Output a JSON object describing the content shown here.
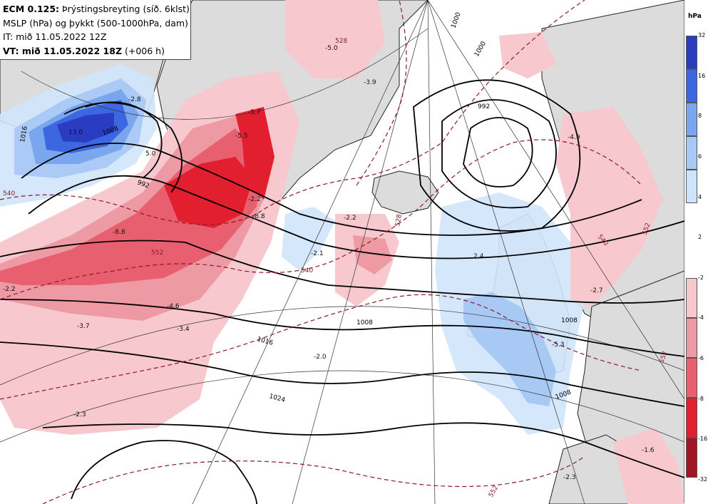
{
  "title": {
    "line1_bold": "ECM 0.125:",
    "line1_rest": " Þrýstingsbreyting (síð. 6klst)",
    "line2": "MSLP (hPa) og þykkt (500-1000hPa, dam)",
    "line3": "IT: mið 11.05.2022 12Z",
    "line4_bold": "VT: mið 11.05.2022 18Z",
    "line4_rest": " (+006 h)"
  },
  "legend": {
    "unit": "hPa",
    "positive": [
      {
        "tick": "32",
        "color": "#2a3cc2"
      },
      {
        "tick": "16",
        "color": "#3d67e0"
      },
      {
        "tick": "8",
        "color": "#7aa6ee"
      },
      {
        "tick": "6",
        "color": "#a9c9f5"
      },
      {
        "tick": "4",
        "color": "#cfe4fb"
      },
      {
        "tick": "2",
        "color": ""
      }
    ],
    "negative": [
      {
        "tick": "-2",
        "color": "#f7c9cf"
      },
      {
        "tick": "-4",
        "color": "#ee9aa5"
      },
      {
        "tick": "-6",
        "color": "#e8606f"
      },
      {
        "tick": "-8",
        "color": "#e11f2e"
      },
      {
        "tick": "-16",
        "color": "#a31524"
      },
      {
        "tick": "-32",
        "color": ""
      }
    ]
  },
  "isobar_labels": [
    "1016",
    "1008",
    "992",
    "1000",
    "1000",
    "1008",
    "1016",
    "1024",
    "1008",
    "992",
    "1008"
  ],
  "thickness_labels": [
    "540",
    "552",
    "528",
    "540",
    "552",
    "540",
    "552",
    "552",
    "528"
  ],
  "change_labels": [
    "-5.0",
    "-3.9",
    "-5.7",
    "-5.5",
    "-8.8",
    "-2.2",
    "-4.6",
    "-3.4",
    "-3.7",
    "-2.3",
    "-2.0",
    "-1.6",
    "-2.3",
    "-2.2",
    "-2.7",
    "-4.9",
    "-2.1",
    "2.4",
    "-5.3",
    "13.0",
    "5.0",
    "-2.2",
    "-8.8",
    "-2.8"
  ]
}
